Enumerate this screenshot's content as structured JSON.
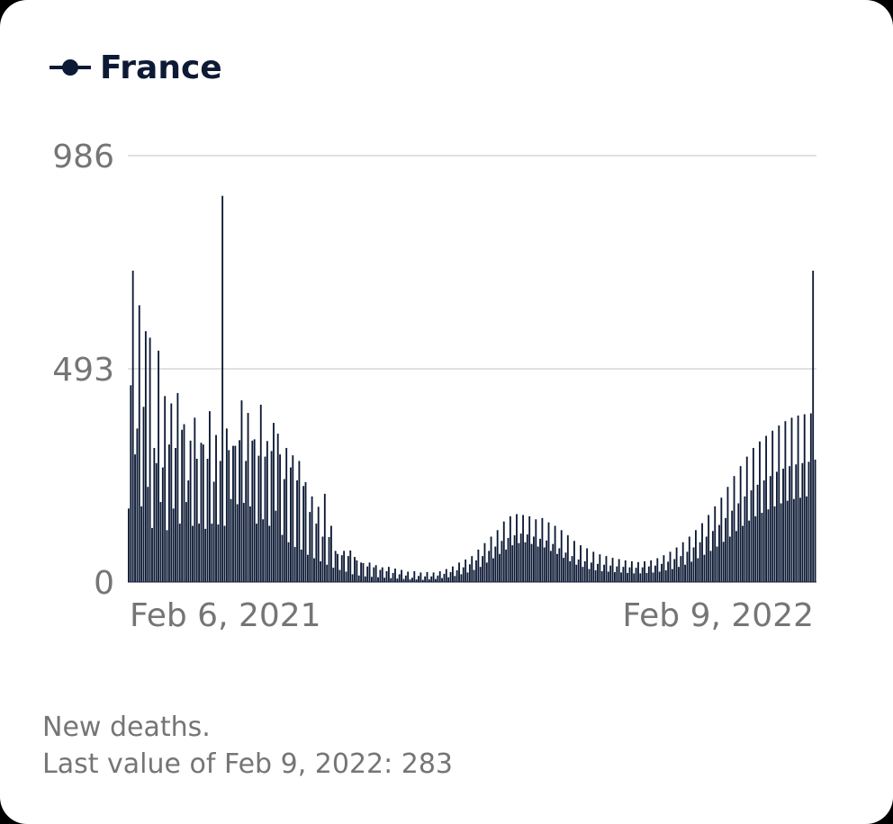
{
  "legend": {
    "series_name": "France",
    "icon": "line-dot-icon",
    "color": "#0d1a35"
  },
  "footer": {
    "metric_label": "New deaths.",
    "last_value_text": "Last value of Feb 9, 2022: 283"
  },
  "chart_data": {
    "type": "bar",
    "ylim": [
      0,
      986
    ],
    "y_ticks": [
      "0",
      "493",
      "986"
    ],
    "x_tick_labels": [
      "Feb 6, 2021",
      "Feb 9, 2022"
    ],
    "x_start_date": "2021-02-06",
    "x_end_date": "2022-02-09",
    "grid": true,
    "bar_color": "#0d1a35",
    "series": [
      {
        "name": "France",
        "values": [
          170,
          455,
          720,
          295,
          355,
          640,
          175,
          405,
          580,
          220,
          565,
          125,
          310,
          275,
          535,
          185,
          265,
          430,
          120,
          318,
          413,
          170,
          310,
          437,
          135,
          352,
          365,
          185,
          235,
          327,
          130,
          380,
          285,
          135,
          322,
          318,
          123,
          285,
          395,
          135,
          232,
          340,
          133,
          280,
          893,
          130,
          355,
          305,
          192,
          315,
          315,
          180,
          328,
          420,
          183,
          280,
          391,
          175,
          327,
          330,
          135,
          292,
          410,
          145,
          290,
          326,
          130,
          303,
          368,
          165,
          343,
          295,
          109,
          238,
          310,
          92,
          265,
          293,
          81,
          235,
          280,
          75,
          222,
          231,
          63,
          162,
          198,
          55,
          135,
          174,
          48,
          105,
          204,
          40,
          104,
          130,
          33,
          72,
          65,
          28,
          62,
          72,
          24,
          60,
          73,
          18,
          58,
          50,
          15,
          45,
          44,
          13,
          36,
          45,
          12,
          34,
          39,
          11,
          28,
          34,
          10,
          25,
          35,
          9,
          21,
          31,
          8,
          18,
          28,
          7,
          15,
          24,
          6,
          10,
          25,
          6,
          14,
          22,
          5,
          13,
          23,
          6,
          13,
          22,
          7,
          15,
          25,
          9,
          19,
          30,
          11,
          23,
          36,
          14,
          27,
          45,
          18,
          34,
          52,
          22,
          41,
          60,
          28,
          50,
          75,
          35,
          60,
          90,
          45,
          72,
          105,
          55,
          82,
          120,
          65,
          95,
          140,
          75,
          102,
          152,
          85,
          108,
          157,
          90,
          112,
          155,
          92,
          110,
          152,
          88,
          105,
          145,
          82,
          100,
          148,
          80,
          96,
          138,
          72,
          88,
          130,
          65,
          78,
          120,
          56,
          68,
          108,
          48,
          60,
          95,
          40,
          52,
          85,
          35,
          48,
          78,
          30,
          45,
          70,
          27,
          42,
          64,
          25,
          40,
          60,
          24,
          38,
          56,
          23,
          36,
          53,
          22,
          35,
          50,
          21,
          34,
          48,
          20,
          33,
          46,
          20,
          34,
          48,
          21,
          36,
          50,
          22,
          38,
          55,
          24,
          42,
          62,
          27,
          47,
          70,
          30,
          53,
          80,
          35,
          60,
          92,
          40,
          70,
          105,
          47,
          80,
          120,
          55,
          92,
          136,
          63,
          105,
          155,
          72,
          118,
          175,
          82,
          132,
          195,
          93,
          148,
          220,
          105,
          165,
          245,
          118,
          182,
          268,
          130,
          198,
          290,
          142,
          212,
          310,
          152,
          225,
          325,
          160,
          235,
          338,
          168,
          245,
          350,
          175,
          255,
          362,
          182,
          262,
          372,
          188,
          268,
          380,
          192,
          272,
          385,
          195,
          275,
          388,
          198,
          278,
          390,
          720,
          283
        ]
      }
    ]
  }
}
